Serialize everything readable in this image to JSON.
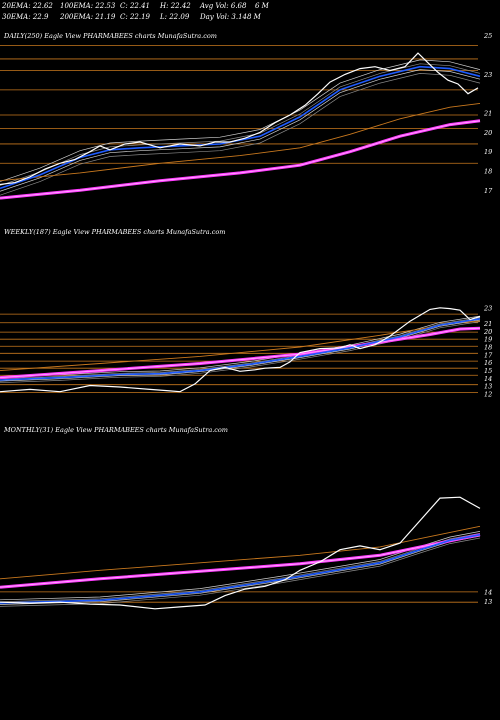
{
  "header": {
    "row1": [
      "20EMA: 22.62",
      "100EMA: 22.53",
      "C: 22.41",
      "H: 22.42",
      "Avg Vol: 6.68",
      "6  M"
    ],
    "row2": [
      "30EMA: 22.9",
      "200EMA: 21.19",
      "C: 22.19",
      "L: 22.09",
      "Day Vol: 3.148 M"
    ]
  },
  "panels": [
    {
      "label": "DAILY(250) Eagle  View  PHARMABEES charts MunafaSutra.com",
      "ticks": [
        "25",
        "23",
        "21",
        "20",
        "19",
        "18",
        "17"
      ]
    },
    {
      "label": "WEEKLY(187) Eagle  View  PHARMABEES charts MunafaSutra.com",
      "ticks": [
        "23",
        "21",
        "20",
        "19",
        "18",
        "17",
        "16",
        "15",
        "14",
        "13",
        "12"
      ]
    },
    {
      "label": "MONTHLY(31) Eagle  View  PHARMABEES charts MunafaSutra.com",
      "ticks": [
        "14",
        "13"
      ]
    }
  ],
  "colors": {
    "background": "#000000",
    "price": "#ffffff",
    "ema_fast": "#1e5bff",
    "ema_slow": "#ff3cff",
    "ema_mid": "#c8781e",
    "level_line": "#c8781e",
    "text": "#ffffff"
  },
  "chart_data": [
    {
      "type": "line",
      "title": "DAILY(250) Eagle  View  PHARMABEES charts MunafaSutra.com",
      "ylim": [
        16.5,
        25.4
      ],
      "yticks": [
        25,
        23,
        21,
        20,
        19,
        18,
        17
      ],
      "series": [
        {
          "role": "price",
          "points": [
            [
              0,
              17.3
            ],
            [
              15,
              17.4
            ],
            [
              30,
              17.7
            ],
            [
              45,
              18.1
            ],
            [
              60,
              18.4
            ],
            [
              75,
              18.6
            ],
            [
              90,
              19.0
            ],
            [
              100,
              19.3
            ],
            [
              110,
              19.1
            ],
            [
              125,
              19.4
            ],
            [
              140,
              19.5
            ],
            [
              160,
              19.2
            ],
            [
              180,
              19.4
            ],
            [
              200,
              19.3
            ],
            [
              215,
              19.5
            ],
            [
              230,
              19.5
            ],
            [
              245,
              19.7
            ],
            [
              260,
              20.0
            ],
            [
              275,
              20.5
            ],
            [
              290,
              20.9
            ],
            [
              305,
              21.4
            ],
            [
              318,
              22.0
            ],
            [
              330,
              22.6
            ],
            [
              345,
              23.0
            ],
            [
              360,
              23.3
            ],
            [
              375,
              23.4
            ],
            [
              390,
              23.2
            ],
            [
              405,
              23.4
            ],
            [
              418,
              24.1
            ],
            [
              428,
              23.6
            ],
            [
              438,
              23.1
            ],
            [
              448,
              22.7
            ],
            [
              458,
              22.5
            ],
            [
              468,
              22.0
            ],
            [
              478,
              22.3
            ]
          ]
        },
        {
          "role": "ema_fast",
          "points": [
            [
              0,
              17.1
            ],
            [
              40,
              17.8
            ],
            [
              80,
              18.7
            ],
            [
              110,
              19.1
            ],
            [
              140,
              19.2
            ],
            [
              180,
              19.3
            ],
            [
              220,
              19.4
            ],
            [
              260,
              19.8
            ],
            [
              300,
              20.8
            ],
            [
              340,
              22.2
            ],
            [
              380,
              22.9
            ],
            [
              420,
              23.4
            ],
            [
              450,
              23.3
            ],
            [
              480,
              22.9
            ]
          ]
        },
        {
          "role": "ema_slow",
          "points": [
            [
              0,
              16.6
            ],
            [
              80,
              17.0
            ],
            [
              160,
              17.5
            ],
            [
              240,
              17.9
            ],
            [
              300,
              18.3
            ],
            [
              350,
              19.0
            ],
            [
              400,
              19.8
            ],
            [
              450,
              20.4
            ],
            [
              480,
              20.6
            ]
          ]
        }
      ],
      "levels": [
        24.5,
        23.8,
        23.2,
        22.2,
        20.9,
        20.2,
        19.4,
        18.4
      ]
    },
    {
      "type": "line",
      "title": "WEEKLY(187) Eagle  View  PHARMABEES charts MunafaSutra.com",
      "ylim": [
        11.5,
        24.0
      ],
      "yticks": [
        23,
        21,
        20,
        19,
        18,
        17,
        16,
        15,
        14,
        13,
        12
      ],
      "series": [
        {
          "role": "price",
          "points": [
            [
              0,
              12.3
            ],
            [
              30,
              12.6
            ],
            [
              60,
              12.3
            ],
            [
              90,
              13.1
            ],
            [
              120,
              12.9
            ],
            [
              150,
              12.6
            ],
            [
              170,
              12.4
            ],
            [
              180,
              12.3
            ],
            [
              195,
              13.3
            ],
            [
              210,
              15.0
            ],
            [
              225,
              15.4
            ],
            [
              240,
              14.9
            ],
            [
              255,
              15.1
            ],
            [
              265,
              15.3
            ],
            [
              280,
              15.4
            ],
            [
              290,
              16.1
            ],
            [
              300,
              17.3
            ],
            [
              320,
              17.8
            ],
            [
              340,
              17.9
            ],
            [
              350,
              18.3
            ],
            [
              360,
              17.8
            ],
            [
              375,
              18.3
            ],
            [
              390,
              19.4
            ],
            [
              410,
              21.3
            ],
            [
              430,
              22.8
            ],
            [
              440,
              23.0
            ],
            [
              450,
              22.9
            ],
            [
              460,
              22.7
            ],
            [
              470,
              21.5
            ],
            [
              480,
              21.9
            ]
          ]
        },
        {
          "role": "ema_fast",
          "points": [
            [
              0,
              13.8
            ],
            [
              60,
              14.1
            ],
            [
              120,
              14.5
            ],
            [
              160,
              14.6
            ],
            [
              200,
              15.0
            ],
            [
              250,
              15.8
            ],
            [
              300,
              16.8
            ],
            [
              350,
              17.9
            ],
            [
              400,
              19.3
            ],
            [
              440,
              20.8
            ],
            [
              480,
              21.6
            ]
          ]
        },
        {
          "role": "ema_slow",
          "points": [
            [
              0,
              14.1
            ],
            [
              100,
              15.0
            ],
            [
              200,
              15.9
            ],
            [
              300,
              17.1
            ],
            [
              380,
              18.6
            ],
            [
              430,
              19.6
            ],
            [
              460,
              20.3
            ],
            [
              480,
              20.4
            ]
          ]
        }
      ],
      "levels": [
        22.2,
        21.1,
        19.9,
        19.0,
        18.1,
        17.2,
        16.2,
        15.3,
        14.4,
        13.2,
        12.2
      ]
    },
    {
      "type": "line",
      "title": "MONTHLY(31) Eagle  View  PHARMABEES charts MunafaSutra.com",
      "ylim": [
        11.0,
        27.0
      ],
      "yticks": [
        14,
        13
      ],
      "series": [
        {
          "role": "price",
          "points": [
            [
              0,
              12.9
            ],
            [
              30,
              12.8
            ],
            [
              60,
              12.9
            ],
            [
              90,
              12.7
            ],
            [
              120,
              12.6
            ],
            [
              155,
              12.2
            ],
            [
              180,
              12.4
            ],
            [
              205,
              12.6
            ],
            [
              225,
              13.6
            ],
            [
              245,
              14.3
            ],
            [
              265,
              14.6
            ],
            [
              285,
              15.3
            ],
            [
              300,
              16.3
            ],
            [
              320,
              17.2
            ],
            [
              340,
              18.5
            ],
            [
              360,
              18.9
            ],
            [
              380,
              18.5
            ],
            [
              400,
              19.2
            ],
            [
              420,
              21.6
            ],
            [
              440,
              24.0
            ],
            [
              460,
              24.1
            ],
            [
              480,
              22.9
            ]
          ]
        },
        {
          "role": "ema_fast",
          "points": [
            [
              0,
              12.8
            ],
            [
              100,
              13.1
            ],
            [
              200,
              14.0
            ],
            [
              280,
              15.3
            ],
            [
              330,
              16.2
            ],
            [
              380,
              17.1
            ],
            [
              420,
              18.5
            ],
            [
              450,
              19.5
            ],
            [
              480,
              20.1
            ]
          ]
        },
        {
          "role": "ema_slow",
          "points": [
            [
              0,
              14.5
            ],
            [
              100,
              15.4
            ],
            [
              200,
              16.2
            ],
            [
              300,
              17.0
            ],
            [
              380,
              17.9
            ],
            [
              430,
              19.0
            ],
            [
              480,
              20.1
            ]
          ]
        }
      ],
      "levels": [
        14.0,
        12.9
      ]
    }
  ]
}
